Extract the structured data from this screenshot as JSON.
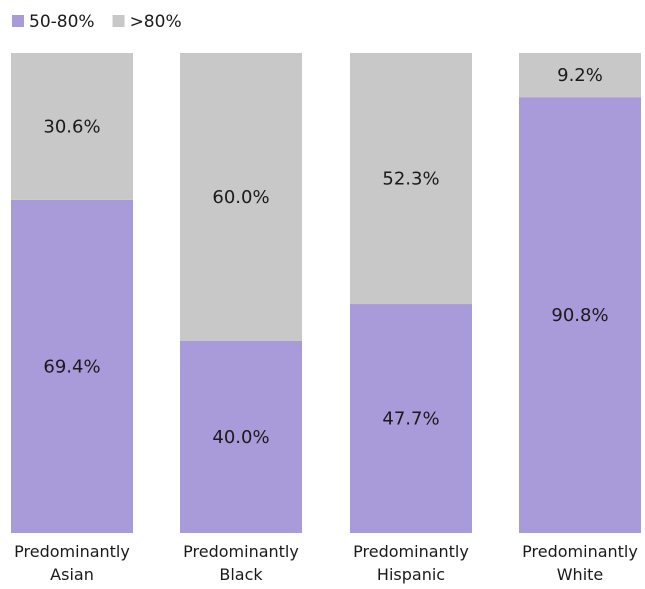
{
  "chart_data": {
    "type": "bar",
    "stacked": true,
    "normalized_percent": true,
    "categories": [
      [
        "Predominantly",
        "Asian"
      ],
      [
        "Predominantly",
        "Black"
      ],
      [
        "Predominantly",
        "Hispanic"
      ],
      [
        "Predominantly",
        "White"
      ]
    ],
    "series": [
      {
        "name": "50-80%",
        "color": "#a99ad9",
        "values": [
          69.4,
          40.0,
          47.7,
          90.8
        ],
        "labels": [
          "69.4%",
          "40.0%",
          "47.7%",
          "90.8%"
        ]
      },
      {
        "name": ">80%",
        "color": "#c8c8c8",
        "values": [
          30.6,
          60.0,
          52.3,
          9.2
        ],
        "labels": [
          "30.6%",
          "60.0%",
          "52.3%",
          "9.2%"
        ]
      }
    ],
    "ylim": [
      0,
      100
    ],
    "legend_position": "top-left",
    "grid": false,
    "title": "",
    "xlabel": "",
    "ylabel": ""
  }
}
